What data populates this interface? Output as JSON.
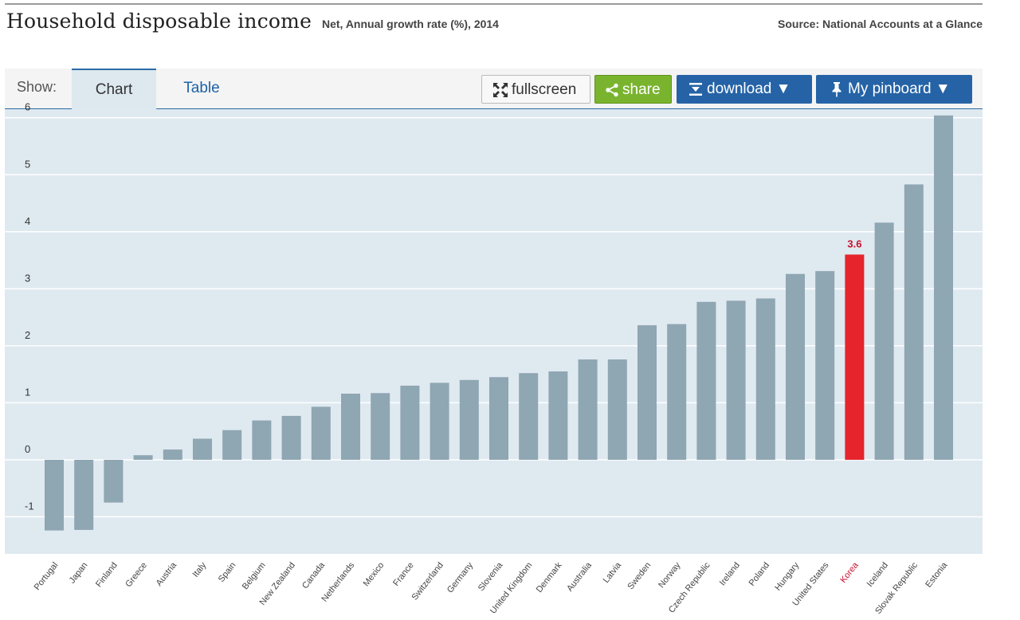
{
  "header": {
    "title": "Household disposable income",
    "subtitle": "Net, Annual growth rate (%), 2014",
    "source": "Source: National Accounts at a Glance"
  },
  "toolbar": {
    "show_label": "Show:",
    "tabs": [
      {
        "label": "Chart",
        "active": true
      },
      {
        "label": "Table",
        "active": false
      }
    ],
    "fullscreen_label": "fullscreen",
    "share_label": "share",
    "download_label": "download ▼",
    "pinboard_label": "My pinboard ▼"
  },
  "colors": {
    "bar": "#8fa6b3",
    "highlight": "#e6242c",
    "plot_background": "#dfe9f0",
    "accent": "#2563a6",
    "share": "#7ab42f"
  },
  "chart_data": {
    "type": "bar",
    "title": "Household disposable income",
    "subtitle": "Net, Annual growth rate (%), 2014",
    "xlabel": "",
    "ylabel": "",
    "ylim": [
      -1.65,
      6.15
    ],
    "yticks": [
      -1,
      0,
      1,
      2,
      3,
      4,
      5,
      6
    ],
    "grid": true,
    "highlight": "Korea",
    "highlight_label": "3.6",
    "categories": [
      "Portugal",
      "Japan",
      "Finland",
      "Greece",
      "Austria",
      "Italy",
      "Spain",
      "Belgium",
      "New Zealand",
      "Canada",
      "Netherlands",
      "Mexico",
      "France",
      "Switzerland",
      "Germany",
      "Slovenia",
      "United Kingdom",
      "Denmark",
      "Australia",
      "Latvia",
      "Sweden",
      "Norway",
      "Czech Republic",
      "Ireland",
      "Poland",
      "Hungary",
      "United States",
      "Korea",
      "Iceland",
      "Slovak Republic",
      "Estonia"
    ],
    "values": [
      -1.24,
      -1.23,
      -0.75,
      0.08,
      0.18,
      0.37,
      0.52,
      0.69,
      0.77,
      0.93,
      1.16,
      1.17,
      1.3,
      1.35,
      1.4,
      1.45,
      1.52,
      1.55,
      1.76,
      1.76,
      2.36,
      2.38,
      2.77,
      2.79,
      2.83,
      3.26,
      3.31,
      3.6,
      4.16,
      4.83,
      6.04
    ]
  }
}
